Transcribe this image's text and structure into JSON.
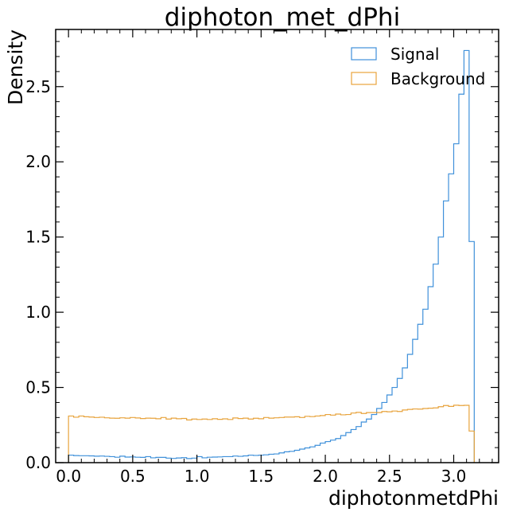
{
  "chart_data": {
    "type": "step-histogram",
    "title": "diphoton_met_dPhi",
    "xlabel": "diphotonmetdPhi",
    "ylabel": "Density",
    "xlim": [
      -0.1,
      3.35
    ],
    "ylim": [
      0,
      2.88
    ],
    "xticks": [
      0.0,
      0.5,
      1.0,
      1.5,
      2.0,
      2.5,
      3.0
    ],
    "xtick_labels": [
      "0.0",
      "0.5",
      "1.0",
      "1.5",
      "2.0",
      "2.5",
      "3.0"
    ],
    "yticks": [
      0.0,
      0.5,
      1.0,
      1.5,
      2.0,
      2.5
    ],
    "ytick_labels": [
      "0.0",
      "0.5",
      "1.0",
      "1.5",
      "2.0",
      "2.5"
    ],
    "legend_position": "top-right",
    "grid": false,
    "bin_edges": [
      0.0,
      0.04,
      0.08,
      0.12,
      0.16,
      0.2,
      0.24,
      0.28,
      0.32,
      0.36,
      0.4,
      0.44,
      0.48,
      0.52,
      0.56,
      0.6,
      0.64,
      0.68,
      0.72,
      0.76,
      0.8,
      0.84,
      0.88,
      0.92,
      0.96,
      1.0,
      1.04,
      1.08,
      1.12,
      1.16,
      1.2,
      1.24,
      1.28,
      1.32,
      1.36,
      1.4,
      1.44,
      1.48,
      1.52,
      1.56,
      1.6,
      1.64,
      1.68,
      1.72,
      1.76,
      1.8,
      1.84,
      1.88,
      1.92,
      1.96,
      2.0,
      2.04,
      2.08,
      2.12,
      2.16,
      2.2,
      2.24,
      2.28,
      2.32,
      2.36,
      2.4,
      2.44,
      2.48,
      2.52,
      2.56,
      2.6,
      2.64,
      2.68,
      2.72,
      2.76,
      2.8,
      2.84,
      2.88,
      2.92,
      2.96,
      3.0,
      3.04,
      3.08,
      3.12,
      3.16
    ],
    "series": [
      {
        "name": "Signal",
        "color": "#3f90da",
        "values": [
          0.05,
          0.047,
          0.046,
          0.046,
          0.045,
          0.043,
          0.044,
          0.042,
          0.04,
          0.036,
          0.043,
          0.037,
          0.038,
          0.036,
          0.035,
          0.04,
          0.032,
          0.035,
          0.035,
          0.03,
          0.028,
          0.031,
          0.033,
          0.027,
          0.03,
          0.04,
          0.032,
          0.036,
          0.037,
          0.038,
          0.04,
          0.04,
          0.044,
          0.042,
          0.045,
          0.05,
          0.048,
          0.05,
          0.052,
          0.056,
          0.058,
          0.065,
          0.072,
          0.075,
          0.082,
          0.09,
          0.098,
          0.105,
          0.115,
          0.13,
          0.14,
          0.15,
          0.16,
          0.18,
          0.2,
          0.22,
          0.24,
          0.27,
          0.29,
          0.32,
          0.36,
          0.4,
          0.45,
          0.5,
          0.56,
          0.63,
          0.72,
          0.82,
          0.92,
          1.02,
          1.17,
          1.32,
          1.5,
          1.74,
          1.92,
          2.12,
          2.45,
          2.74,
          1.47
        ]
      },
      {
        "name": "Background",
        "color": "#e8a33c",
        "values": [
          0.31,
          0.302,
          0.31,
          0.305,
          0.303,
          0.3,
          0.302,
          0.298,
          0.296,
          0.295,
          0.298,
          0.296,
          0.3,
          0.297,
          0.293,
          0.296,
          0.295,
          0.292,
          0.3,
          0.29,
          0.296,
          0.292,
          0.294,
          0.284,
          0.29,
          0.287,
          0.29,
          0.287,
          0.292,
          0.288,
          0.291,
          0.287,
          0.297,
          0.293,
          0.296,
          0.29,
          0.295,
          0.292,
          0.3,
          0.296,
          0.298,
          0.3,
          0.303,
          0.303,
          0.305,
          0.3,
          0.308,
          0.306,
          0.31,
          0.313,
          0.32,
          0.316,
          0.323,
          0.318,
          0.32,
          0.33,
          0.334,
          0.327,
          0.333,
          0.333,
          0.333,
          0.34,
          0.338,
          0.343,
          0.34,
          0.35,
          0.354,
          0.357,
          0.356,
          0.36,
          0.362,
          0.364,
          0.372,
          0.38,
          0.374,
          0.382,
          0.38,
          0.381,
          0.21
        ]
      }
    ]
  }
}
